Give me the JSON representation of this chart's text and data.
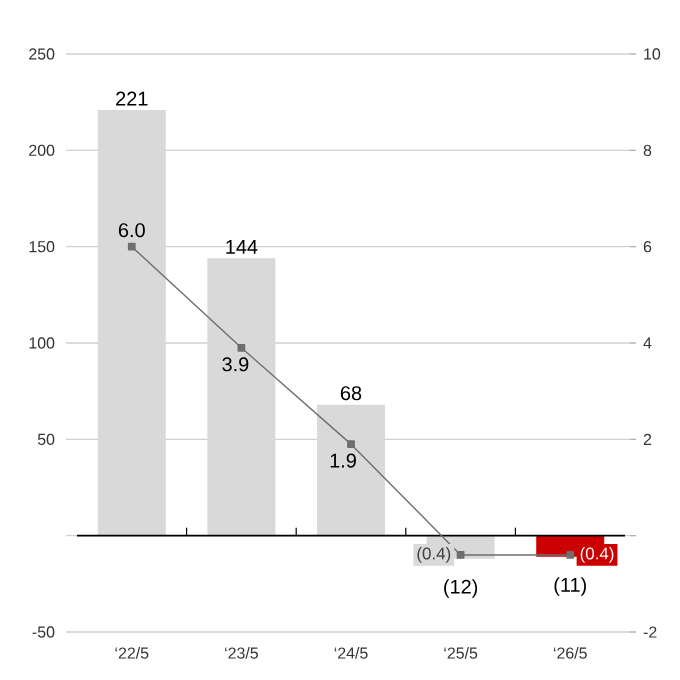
{
  "chart_data": {
    "type": "bar",
    "categories": [
      "‘22/5",
      "‘23/5",
      "‘24/5",
      "‘25/5",
      "‘26/5"
    ],
    "series": [
      {
        "colors": [
          "#d9d9d9",
          "#d9d9d9",
          "#d9d9d9",
          "#d9d9d9",
          "#cc0000"
        ],
        "values": [
          221,
          144,
          68,
          -12,
          -11
        ],
        "value_labels": [
          "221",
          "144",
          "68",
          "(12)",
          "(11)"
        ]
      },
      {
        "type": "line",
        "axis": "y2",
        "color": "#6e6e6e",
        "marker": "square",
        "line_style": "solid",
        "values": [
          6.0,
          3.9,
          1.9,
          -0.4,
          -0.4
        ],
        "value_labels": [
          "6.0",
          "3.9",
          "1.9",
          "(0.4)",
          "(0.4)"
        ]
      }
    ],
    "ylim": [
      -50,
      250
    ],
    "yticks": [
      -50,
      {
        "value": 0,
        "label": null
      },
      50,
      100,
      150,
      200,
      250
    ],
    "y2lim": [
      -2,
      10
    ],
    "y2ticks": [
      -2,
      {
        "value": 0,
        "label": null
      },
      2,
      4,
      6,
      8,
      10
    ],
    "grid": "y"
  }
}
